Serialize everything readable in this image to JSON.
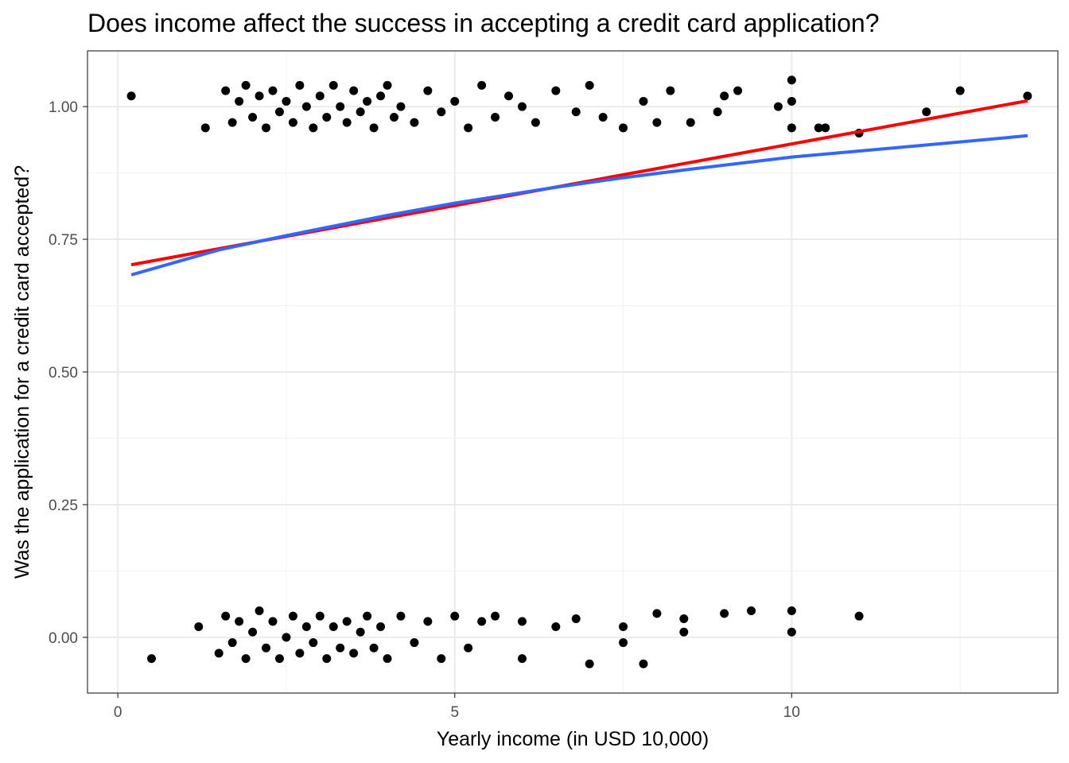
{
  "chart_data": {
    "type": "scatter",
    "title": "Does income affect the success in accepting a credit card application?",
    "xlabel": "Yearly income (in USD 10,000)",
    "ylabel": "Was the application for a credit card accepted?",
    "xlim": [
      -0.45,
      13.95
    ],
    "ylim": [
      -0.105,
      1.105
    ],
    "x_ticks": [
      0,
      5,
      10
    ],
    "x_tick_labels": [
      "0",
      "5",
      "10"
    ],
    "y_ticks": [
      0,
      0.25,
      0.5,
      0.75,
      1.0
    ],
    "y_tick_labels": [
      "0.00",
      "0.25",
      "0.50",
      "0.75",
      "1.00"
    ],
    "grid": true,
    "theme": "bw",
    "point_color": "#000000",
    "series": [
      {
        "role": "points_accepted",
        "x": [
          0.2,
          1.3,
          1.6,
          1.7,
          1.8,
          1.9,
          2.0,
          2.1,
          2.2,
          2.3,
          2.4,
          2.5,
          2.6,
          2.7,
          2.8,
          2.9,
          3.0,
          3.1,
          3.2,
          3.3,
          3.4,
          3.5,
          3.6,
          3.7,
          3.8,
          3.9,
          4.0,
          4.1,
          4.2,
          4.4,
          4.6,
          4.8,
          5.0,
          5.2,
          5.4,
          5.6,
          5.8,
          6.0,
          6.2,
          6.5,
          6.8,
          7.0,
          7.2,
          7.5,
          7.8,
          8.0,
          8.2,
          8.5,
          8.9,
          9.0,
          9.2,
          9.8,
          10.0,
          10.0,
          10.0,
          10.4,
          10.5,
          11.0,
          12.0,
          12.5,
          13.5
        ],
        "y": [
          1.02,
          0.96,
          1.03,
          0.97,
          1.01,
          1.04,
          0.98,
          1.02,
          0.96,
          1.03,
          0.99,
          1.01,
          0.97,
          1.04,
          1.0,
          0.96,
          1.02,
          0.98,
          1.04,
          1.0,
          0.97,
          1.03,
          0.99,
          1.01,
          0.96,
          1.02,
          1.04,
          0.98,
          1.0,
          0.97,
          1.03,
          0.99,
          1.01,
          0.96,
          1.04,
          0.98,
          1.02,
          1.0,
          0.97,
          1.03,
          0.99,
          1.04,
          0.98,
          0.96,
          1.01,
          0.97,
          1.03,
          0.97,
          0.99,
          1.02,
          1.03,
          1.0,
          1.05,
          1.01,
          0.96,
          0.96,
          0.96,
          0.95,
          0.99,
          1.03,
          1.02
        ]
      },
      {
        "role": "points_rejected",
        "x": [
          0.5,
          1.2,
          1.5,
          1.6,
          1.7,
          1.8,
          1.9,
          2.0,
          2.1,
          2.2,
          2.3,
          2.4,
          2.5,
          2.6,
          2.7,
          2.8,
          2.9,
          3.0,
          3.1,
          3.2,
          3.3,
          3.4,
          3.5,
          3.6,
          3.7,
          3.8,
          3.9,
          4.0,
          4.2,
          4.4,
          4.6,
          4.8,
          5.0,
          5.2,
          5.4,
          5.6,
          6.0,
          6.0,
          6.5,
          6.8,
          7.0,
          7.5,
          7.5,
          7.8,
          8.0,
          8.4,
          8.4,
          9.0,
          9.4,
          10.0,
          10.0,
          11.0
        ],
        "y": [
          -0.04,
          0.02,
          -0.03,
          0.04,
          -0.01,
          0.03,
          -0.04,
          0.01,
          0.05,
          -0.02,
          0.03,
          -0.04,
          0.0,
          0.04,
          -0.03,
          0.02,
          -0.01,
          0.04,
          -0.04,
          0.02,
          -0.02,
          0.03,
          -0.03,
          0.01,
          0.04,
          -0.02,
          0.02,
          -0.04,
          0.04,
          -0.01,
          0.03,
          -0.04,
          0.04,
          -0.02,
          0.03,
          0.04,
          0.03,
          -0.04,
          0.02,
          0.035,
          -0.05,
          0.02,
          -0.01,
          -0.05,
          0.045,
          0.035,
          0.01,
          0.045,
          0.05,
          0.05,
          0.01,
          0.04
        ]
      }
    ],
    "fit_lines": [
      {
        "role": "linear-fit",
        "color": "#ff0000",
        "x": [
          0.2,
          13.5
        ],
        "y": [
          0.702,
          1.011
        ]
      },
      {
        "role": "logistic-fit",
        "color": "#3366ff",
        "x": [
          0.2,
          1.5,
          2.5,
          4.0,
          5.0,
          6.5,
          7.5,
          8.5,
          10.0,
          11.5,
          13.5
        ],
        "y": [
          0.683,
          0.73,
          0.757,
          0.795,
          0.818,
          0.848,
          0.866,
          0.882,
          0.905,
          0.922,
          0.945
        ]
      }
    ]
  }
}
